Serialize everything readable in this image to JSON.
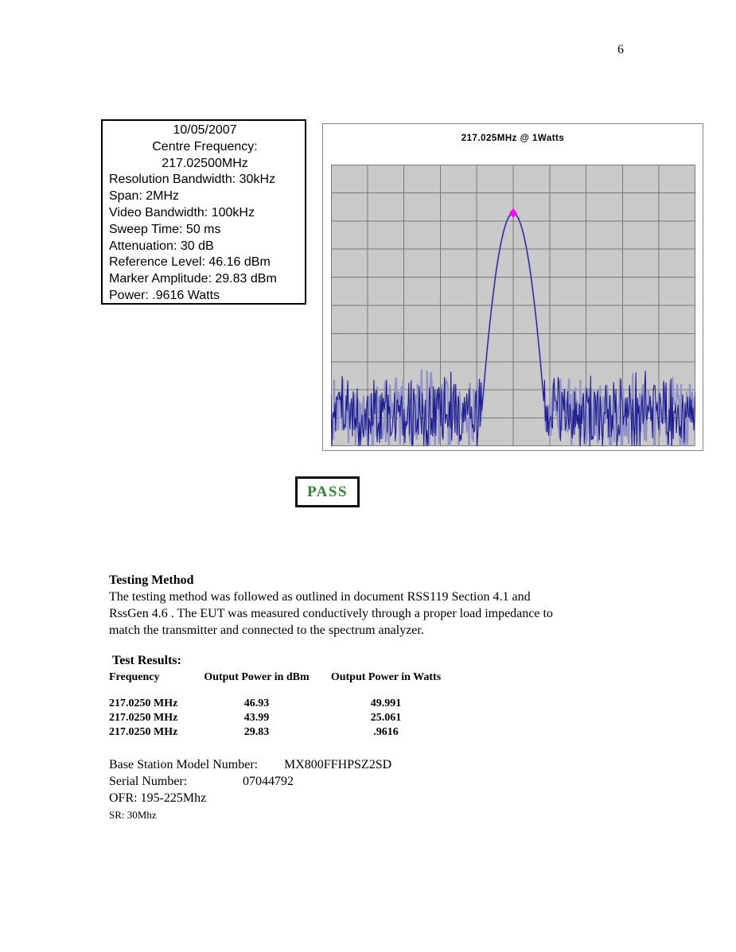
{
  "page": {
    "number": "6"
  },
  "settings_box": {
    "centered_lines": [
      "10/05/2007",
      "Centre Frequency:",
      "217.02500MHz"
    ],
    "lines": [
      "Resolution Bandwidth: 30kHz",
      "Span: 2MHz",
      "Video Bandwidth: 100kHz",
      "Sweep Time: 50 ms",
      "Attenuation: 30 dB",
      "Reference Level: 46.16 dBm",
      "Marker Amplitude: 29.83 dBm",
      "Power: .9616 Watts"
    ]
  },
  "chart": {
    "title": "217.025MHz @ 1Watts"
  },
  "chart_data": {
    "type": "line",
    "title": "217.025MHz @ 1Watts",
    "x_axis": {
      "center_frequency_mhz": 217.025,
      "span_mhz": 2.0,
      "divisions": 10,
      "tick_labels": []
    },
    "y_axis": {
      "reference_level_dbm": 46.16,
      "divisions": 10,
      "tick_labels": []
    },
    "grid": "on",
    "legend": "none",
    "plot_bg_color": "#c9c9c9",
    "grid_color": "#787878",
    "trace_color": "#1b1b8e",
    "trace_halo_color": "#9193c6",
    "marker": {
      "shape": "diamond",
      "color": "#ff00ff",
      "x_frac": 0.5,
      "y_frac": 0.172,
      "frequency_mhz": 217.025,
      "amplitude_dbm": 29.83
    },
    "signal": {
      "peak_x_frac": 0.5,
      "peak_y_frac": 0.172,
      "flank_curvature": 95,
      "noise_floor_y_frac": 0.885,
      "noise_amplitude_frac": 0.115,
      "samples": 460
    }
  },
  "pass_label": "PASS",
  "testing_method": {
    "heading": "Testing Method",
    "lines": [
      "The testing method was followed as outlined in document RSS119 Section 4.1 and",
      "RssGen 4.6 . The EUT was measured conductively through a proper load impedance to",
      "match the transmitter and connected to the spectrum analyzer."
    ]
  },
  "test_results": {
    "heading": "Test Results:",
    "columns": [
      "Frequency",
      "Output Power in dBm",
      "Output Power in Watts"
    ],
    "rows": [
      [
        "217.0250 MHz",
        "46.93",
        "49.991"
      ],
      [
        "217.0250 MHz",
        "43.99",
        "25.061"
      ],
      [
        "217.0250 MHz",
        "29.83",
        ".9616"
      ]
    ]
  },
  "equipment": {
    "model_label": "Base Station Model Number:",
    "model_value": "MX800FFHPSZ2SD",
    "serial_label": "Serial Number:",
    "serial_value": "07044792",
    "ofr": "OFR: 195-225Mhz",
    "sr": "SR: 30Mhz"
  },
  "colors": {
    "pass_green": "#2e8b2e",
    "trace_navy": "#1b1b8e",
    "marker_magenta": "#ff00ff",
    "plot_gray": "#c9c9c9"
  }
}
